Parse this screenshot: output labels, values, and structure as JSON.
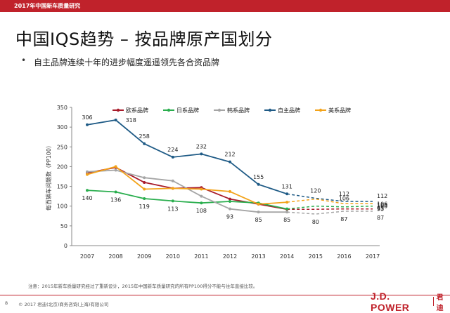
{
  "header": {
    "report_title": "2017年中国新车质量研究"
  },
  "title": "中国IQS趋势 – 按品牌原产国划分",
  "bullet": {
    "marker": "•",
    "text": "自主品牌连续十年的进步幅度遥遥领先各合资品牌"
  },
  "footnote": "注意：2015年新车质量研究经过了重新设计，2015年中国新车质量研究的所有PP100得分不能与往年直接比较。",
  "footer": {
    "page_number": "8",
    "copyright": "© 2017 君迪(北京)商务咨询(上海)有限公司",
    "logo_text": "J.D. POWER",
    "logo_cn": "君迪"
  },
  "colors": {
    "brand_red": "#c0222b",
    "europe": "#a81b2a",
    "japan": "#2aae4e",
    "korea": "#a5a5a5",
    "china": "#1f5b86",
    "usa": "#f3a31a"
  },
  "chart_data": {
    "type": "line",
    "x": [
      2007,
      2008,
      2009,
      2010,
      2011,
      2012,
      2013,
      2014,
      2015,
      2016,
      2017
    ],
    "xlabel": "",
    "ylabel": "每百辆车问题数（PP100）",
    "ylim": [
      0,
      350
    ],
    "yticks": [
      0,
      50,
      100,
      150,
      200,
      250,
      300,
      350
    ],
    "break_after": 2014,
    "grid": false,
    "legend_position": "top",
    "series": [
      {
        "name": "欧系品牌",
        "color_key": "europe",
        "values": [
          184,
          198,
          160,
          145,
          147,
          118,
          105,
          92,
          92,
          93,
          93
        ],
        "labels": [
          null,
          null,
          null,
          null,
          null,
          null,
          null,
          null,
          null,
          null,
          "93"
        ]
      },
      {
        "name": "日系品牌",
        "color_key": "japan",
        "values": [
          140,
          136,
          119,
          113,
          108,
          112,
          108,
          93,
          100,
          98,
          100
        ],
        "labels": [
          "140",
          "136",
          "119",
          "113",
          "108",
          null,
          null,
          null,
          null,
          null,
          "100"
        ]
      },
      {
        "name": "韩系品牌",
        "color_key": "korea",
        "values": [
          187,
          191,
          172,
          164,
          125,
          93,
          85,
          85,
          80,
          87,
          87
        ],
        "labels": [
          null,
          null,
          null,
          null,
          null,
          "93",
          "85",
          "85",
          "80",
          "87",
          "87"
        ]
      },
      {
        "name": "自主品牌",
        "color_key": "china",
        "values": [
          306,
          318,
          258,
          224,
          232,
          212,
          155,
          131,
          120,
          112,
          112
        ],
        "labels": [
          "306",
          "318",
          "258",
          "224",
          "232",
          "212",
          "155",
          "131",
          "120",
          "112",
          "112"
        ]
      },
      {
        "name": "美系品牌",
        "color_key": "usa",
        "values": [
          180,
          200,
          143,
          145,
          143,
          137,
          105,
          110,
          118,
          106,
          106
        ],
        "labels": [
          null,
          null,
          null,
          null,
          null,
          null,
          null,
          null,
          null,
          "106",
          "106"
        ]
      }
    ],
    "extra_labels": [
      {
        "text": "103",
        "x": 2017,
        "y": 103
      },
      {
        "text": "95",
        "x": 2017,
        "y": 95
      }
    ]
  }
}
